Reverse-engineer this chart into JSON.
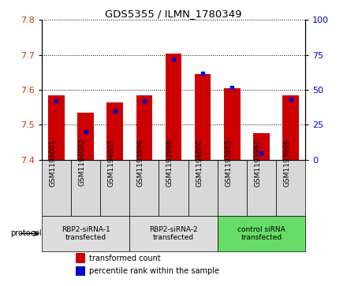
{
  "title": "GDS5355 / ILMN_1780349",
  "samples": [
    "GSM1194001",
    "GSM1194002",
    "GSM1194003",
    "GSM1193996",
    "GSM1193998",
    "GSM1194000",
    "GSM1193995",
    "GSM1193997",
    "GSM1193999"
  ],
  "red_values": [
    7.585,
    7.535,
    7.565,
    7.585,
    7.705,
    7.645,
    7.605,
    7.475,
    7.585
  ],
  "blue_values_pct": [
    42,
    20,
    35,
    42,
    72,
    62,
    52,
    5,
    43
  ],
  "ylim_left": [
    7.4,
    7.8
  ],
  "ylim_right": [
    0,
    100
  ],
  "yticks_left": [
    7.4,
    7.5,
    7.6,
    7.7,
    7.8
  ],
  "yticks_right": [
    0,
    25,
    50,
    75,
    100
  ],
  "groups": [
    {
      "label": "RBP2-siRNA-1\ntransfected",
      "indices": [
        0,
        1,
        2
      ],
      "color": "#dddddd"
    },
    {
      "label": "RBP2-siRNA-2\ntransfected",
      "indices": [
        3,
        4,
        5
      ],
      "color": "#dddddd"
    },
    {
      "label": "control siRNA\ntransfected",
      "indices": [
        6,
        7,
        8
      ],
      "color": "#66dd66"
    }
  ],
  "bar_color": "#cc0000",
  "blue_color": "#0000cc",
  "bar_width": 0.55,
  "tick_label_color_left": "#cc3300",
  "tick_label_color_right": "#0000cc",
  "legend_items": [
    {
      "color": "#cc0000",
      "label": "transformed count"
    },
    {
      "color": "#0000cc",
      "label": "percentile rank within the sample"
    }
  ],
  "sample_box_color": "#d8d8d8",
  "protocol_label": "protocol"
}
